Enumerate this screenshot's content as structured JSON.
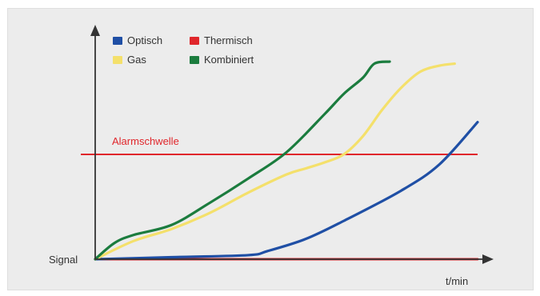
{
  "chart_data": {
    "type": "line",
    "title": "",
    "xlabel": "t/min",
    "ylabel": "Signal",
    "ylim": [
      0,
      100
    ],
    "xlim": [
      0,
      100
    ],
    "grid": false,
    "legend_position": "top-left",
    "threshold": {
      "label": "Alarmschwelle",
      "value": 52,
      "color": "#e0262b"
    },
    "series": [
      {
        "name": "Optisch",
        "color": "#1f4fa5",
        "x": [
          0,
          20,
          40,
          45,
          55,
          65,
          80,
          90,
          100
        ],
        "y": [
          0,
          1,
          2,
          4,
          10,
          19,
          34,
          47,
          68
        ]
      },
      {
        "name": "Thermisch",
        "color": "#e0262b",
        "x": [
          0,
          100
        ],
        "y": [
          0,
          0
        ]
      },
      {
        "name": "Gas",
        "color": "#f4e06b",
        "x": [
          0,
          10,
          20,
          30,
          40,
          50,
          55,
          60,
          65,
          70,
          75,
          80,
          85,
          90,
          94
        ],
        "y": [
          0,
          9,
          15,
          23,
          33,
          42,
          45,
          48,
          52,
          61,
          74,
          85,
          93,
          96,
          97
        ]
      },
      {
        "name": "Kombiniert",
        "color": "#1b7c3e",
        "x": [
          0,
          5,
          10,
          20,
          30,
          40,
          50,
          60,
          65,
          70,
          73,
          77
        ],
        "y": [
          0,
          8,
          12,
          17,
          28,
          40,
          53,
          72,
          82,
          90,
          97,
          98
        ]
      }
    ],
    "legend_layout": [
      [
        "Optisch",
        "Thermisch"
      ],
      [
        "Gas",
        "Kombiniert"
      ]
    ]
  }
}
